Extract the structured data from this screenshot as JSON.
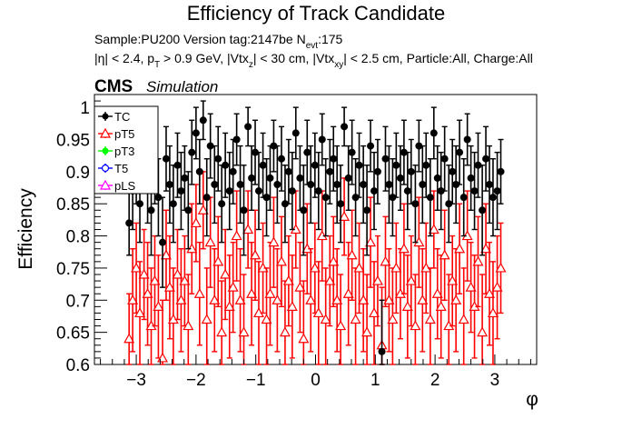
{
  "header": {
    "title": "Efficiency of Track Candidate",
    "sample_line": "Sample:PU200   Version tag:2147be  N",
    "nevt_sub": "evt",
    "nevt_val": ":175",
    "cuts": {
      "a": "|η| < 2.4, p",
      "a_sub": "T",
      "b": " > 0.9 GeV, |Vtx",
      "b_sub": "z",
      "c": "| < 30 cm, |Vtx",
      "c_sub": "xy",
      "d": "| < 2.5 cm, Particle:All, Charge:All"
    },
    "cms": "CMS",
    "simulation": "Simulation"
  },
  "chart_data": {
    "type": "scatter",
    "title": "Efficiency of Track Candidate",
    "xlabel": "φ",
    "ylabel": "Efficiency",
    "xlim": [
      -3.7,
      3.7
    ],
    "ylim": [
      0.6,
      1.02
    ],
    "x_ticks": [
      -3,
      -2,
      -1,
      0,
      1,
      2,
      3
    ],
    "x_tick_labels": [
      "−3",
      "−2",
      "−1",
      "0",
      "1",
      "2",
      "3"
    ],
    "y_ticks": [
      0.6,
      0.65,
      0.7,
      0.75,
      0.8,
      0.85,
      0.9,
      0.95,
      1.0
    ],
    "y_tick_labels": [
      "0.6",
      "0.65",
      "0.7",
      "0.75",
      "0.8",
      "0.85",
      "0.9",
      "0.95",
      "1"
    ],
    "legend_position": "top-left",
    "legend": [
      {
        "name": "TC",
        "color": "#000000",
        "marker": "filled-circle"
      },
      {
        "name": "pT5",
        "color": "#ff0000",
        "marker": "open-triangle"
      },
      {
        "name": "pT3",
        "color": "#00ff00",
        "marker": "filled-circle"
      },
      {
        "name": "T5",
        "color": "#0000ff",
        "marker": "open-circle"
      },
      {
        "name": "pLS",
        "color": "#ff00ff",
        "marker": "open-triangle"
      }
    ],
    "series": [
      {
        "name": "TC",
        "color": "#000000",
        "marker": "filled-circle",
        "x": [
          -3.12,
          -3.06,
          -3.0,
          -2.94,
          -2.87,
          -2.81,
          -2.75,
          -2.69,
          -2.63,
          -2.56,
          -2.5,
          -2.44,
          -2.38,
          -2.31,
          -2.25,
          -2.19,
          -2.13,
          -2.07,
          -2.0,
          -1.94,
          -1.88,
          -1.82,
          -1.76,
          -1.69,
          -1.63,
          -1.57,
          -1.51,
          -1.44,
          -1.38,
          -1.32,
          -1.26,
          -1.2,
          -1.13,
          -1.07,
          -1.01,
          -0.95,
          -0.88,
          -0.82,
          -0.76,
          -0.7,
          -0.64,
          -0.57,
          -0.51,
          -0.45,
          -0.39,
          -0.33,
          -0.26,
          -0.2,
          -0.14,
          -0.08,
          -0.01,
          0.05,
          0.11,
          0.17,
          0.24,
          0.3,
          0.36,
          0.42,
          0.48,
          0.55,
          0.61,
          0.67,
          0.73,
          0.8,
          0.86,
          0.92,
          0.98,
          1.04,
          1.11,
          1.17,
          1.23,
          1.29,
          1.35,
          1.42,
          1.48,
          1.54,
          1.6,
          1.67,
          1.73,
          1.79,
          1.85,
          1.92,
          1.98,
          2.04,
          2.1,
          2.16,
          2.23,
          2.29,
          2.35,
          2.41,
          2.48,
          2.54,
          2.6,
          2.66,
          2.72,
          2.79,
          2.85,
          2.91,
          2.97,
          3.04,
          3.1
        ],
        "y": [
          0.82,
          0.87,
          0.9,
          0.85,
          0.93,
          0.88,
          0.84,
          0.9,
          0.86,
          0.79,
          0.92,
          0.88,
          0.85,
          0.91,
          0.87,
          0.89,
          0.84,
          0.93,
          0.96,
          0.9,
          0.98,
          0.86,
          0.94,
          0.88,
          0.92,
          0.85,
          0.91,
          0.87,
          0.9,
          0.95,
          0.88,
          0.84,
          0.97,
          0.89,
          0.93,
          0.87,
          0.91,
          0.86,
          0.89,
          0.94,
          0.88,
          0.92,
          0.85,
          0.9,
          0.87,
          0.96,
          0.89,
          0.84,
          0.93,
          0.88,
          0.91,
          0.87,
          0.95,
          0.86,
          0.9,
          0.92,
          0.88,
          0.85,
          0.97,
          0.89,
          0.93,
          0.86,
          0.91,
          0.88,
          0.84,
          0.94,
          0.87,
          0.9,
          0.62,
          0.92,
          0.88,
          0.86,
          0.91,
          0.89,
          0.93,
          0.87,
          0.9,
          0.85,
          0.94,
          0.88,
          0.91,
          0.86,
          0.96,
          0.89,
          0.87,
          0.92,
          0.85,
          0.9,
          0.88,
          0.93,
          0.86,
          0.95,
          0.89,
          0.87,
          0.91,
          0.84,
          0.92,
          0.88,
          0.86,
          0.87,
          0.9
        ],
        "err": [
          0.05,
          0.06,
          0.05,
          0.06,
          0.05,
          0.06,
          0.07,
          0.05,
          0.06,
          0.07,
          0.05,
          0.06,
          0.06,
          0.05,
          0.06,
          0.05,
          0.06,
          0.05,
          0.04,
          0.05,
          0.03,
          0.06,
          0.05,
          0.06,
          0.05,
          0.06,
          0.05,
          0.06,
          0.05,
          0.04,
          0.06,
          0.07,
          0.03,
          0.05,
          0.05,
          0.06,
          0.05,
          0.06,
          0.05,
          0.04,
          0.06,
          0.05,
          0.06,
          0.05,
          0.06,
          0.04,
          0.05,
          0.07,
          0.05,
          0.06,
          0.05,
          0.06,
          0.04,
          0.06,
          0.05,
          0.05,
          0.06,
          0.06,
          0.03,
          0.05,
          0.05,
          0.06,
          0.05,
          0.06,
          0.07,
          0.04,
          0.06,
          0.05,
          0.08,
          0.05,
          0.06,
          0.06,
          0.05,
          0.05,
          0.05,
          0.06,
          0.05,
          0.06,
          0.04,
          0.06,
          0.05,
          0.06,
          0.04,
          0.05,
          0.06,
          0.05,
          0.06,
          0.05,
          0.06,
          0.05,
          0.06,
          0.04,
          0.05,
          0.06,
          0.05,
          0.07,
          0.05,
          0.06,
          0.06,
          0.06,
          0.05
        ]
      },
      {
        "name": "pT5",
        "color": "#ff0000",
        "marker": "open-triangle",
        "x": [
          -3.12,
          -3.06,
          -3.0,
          -2.94,
          -2.87,
          -2.81,
          -2.75,
          -2.69,
          -2.63,
          -2.56,
          -2.5,
          -2.44,
          -2.38,
          -2.31,
          -2.25,
          -2.19,
          -2.13,
          -2.07,
          -2.0,
          -1.94,
          -1.88,
          -1.82,
          -1.76,
          -1.69,
          -1.63,
          -1.57,
          -1.51,
          -1.44,
          -1.38,
          -1.32,
          -1.26,
          -1.2,
          -1.13,
          -1.07,
          -1.01,
          -0.95,
          -0.88,
          -0.82,
          -0.76,
          -0.7,
          -0.64,
          -0.57,
          -0.51,
          -0.45,
          -0.39,
          -0.33,
          -0.26,
          -0.2,
          -0.14,
          -0.08,
          -0.01,
          0.05,
          0.11,
          0.17,
          0.24,
          0.3,
          0.36,
          0.42,
          0.48,
          0.55,
          0.61,
          0.67,
          0.73,
          0.8,
          0.86,
          0.92,
          0.98,
          1.04,
          1.11,
          1.17,
          1.23,
          1.29,
          1.35,
          1.42,
          1.48,
          1.54,
          1.6,
          1.67,
          1.73,
          1.79,
          1.85,
          1.92,
          1.98,
          2.04,
          2.1,
          2.16,
          2.23,
          2.29,
          2.35,
          2.41,
          2.48,
          2.54,
          2.6,
          2.66,
          2.72,
          2.79,
          2.85,
          2.91,
          2.97,
          3.04,
          3.1
        ],
        "y": [
          0.64,
          0.7,
          0.75,
          0.68,
          0.74,
          0.71,
          0.66,
          0.73,
          0.69,
          0.61,
          0.77,
          0.72,
          0.67,
          0.74,
          0.7,
          0.73,
          0.66,
          0.78,
          0.82,
          0.71,
          0.84,
          0.67,
          0.79,
          0.7,
          0.76,
          0.65,
          0.74,
          0.69,
          0.72,
          0.8,
          0.7,
          0.65,
          0.81,
          0.71,
          0.77,
          0.68,
          0.75,
          0.67,
          0.71,
          0.79,
          0.7,
          0.76,
          0.65,
          0.73,
          0.69,
          0.81,
          0.72,
          0.64,
          0.78,
          0.7,
          0.75,
          0.68,
          0.8,
          0.67,
          0.73,
          0.76,
          0.7,
          0.66,
          0.83,
          0.71,
          0.77,
          0.67,
          0.75,
          0.7,
          0.65,
          0.79,
          0.68,
          0.73,
          0.63,
          0.76,
          0.7,
          0.67,
          0.75,
          0.71,
          0.78,
          0.69,
          0.73,
          0.66,
          0.79,
          0.7,
          0.75,
          0.67,
          0.81,
          0.71,
          0.69,
          0.77,
          0.66,
          0.73,
          0.7,
          0.78,
          0.67,
          0.8,
          0.72,
          0.69,
          0.76,
          0.65,
          0.78,
          0.71,
          0.68,
          0.72,
          0.75
        ],
        "err": [
          0.07,
          0.08,
          0.07,
          0.08,
          0.07,
          0.08,
          0.09,
          0.07,
          0.08,
          0.09,
          0.07,
          0.08,
          0.08,
          0.07,
          0.08,
          0.07,
          0.08,
          0.07,
          0.06,
          0.08,
          0.06,
          0.08,
          0.07,
          0.08,
          0.07,
          0.08,
          0.07,
          0.08,
          0.07,
          0.07,
          0.08,
          0.09,
          0.06,
          0.08,
          0.07,
          0.08,
          0.07,
          0.08,
          0.08,
          0.07,
          0.08,
          0.07,
          0.08,
          0.07,
          0.08,
          0.06,
          0.07,
          0.09,
          0.07,
          0.08,
          0.07,
          0.08,
          0.07,
          0.08,
          0.07,
          0.07,
          0.08,
          0.08,
          0.06,
          0.08,
          0.07,
          0.08,
          0.07,
          0.08,
          0.09,
          0.07,
          0.08,
          0.07,
          0.09,
          0.07,
          0.08,
          0.08,
          0.07,
          0.07,
          0.07,
          0.08,
          0.07,
          0.08,
          0.07,
          0.08,
          0.07,
          0.08,
          0.06,
          0.07,
          0.08,
          0.07,
          0.08,
          0.07,
          0.08,
          0.07,
          0.08,
          0.07,
          0.07,
          0.08,
          0.07,
          0.09,
          0.07,
          0.08,
          0.08,
          0.08,
          0.07
        ]
      }
    ]
  }
}
